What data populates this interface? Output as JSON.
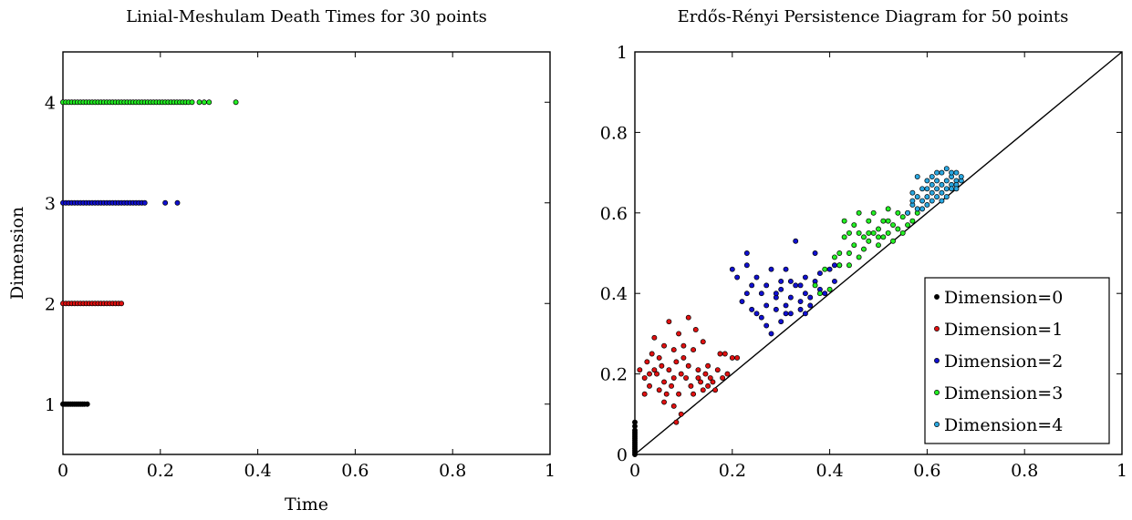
{
  "chart_data": [
    {
      "type": "scatter",
      "title": "Linial-Meshulam Death Times for 30 points",
      "xlabel": "Time",
      "ylabel": "Dimension",
      "xlim": [
        0,
        1
      ],
      "ylim": [
        0.5,
        4.5
      ],
      "xticks": [
        0,
        0.2,
        0.4,
        0.6,
        0.8,
        1
      ],
      "xtick_labels": [
        "0",
        "0.2",
        "0.4",
        "0.6",
        "0.8",
        "1"
      ],
      "yticks": [
        1,
        2,
        3,
        4
      ],
      "ytick_labels": [
        "1",
        "2",
        "3",
        "4"
      ],
      "grid": false,
      "series": [
        {
          "dimension": 1,
          "color": "#000000",
          "x": [
            0.0,
            0.004,
            0.008,
            0.012,
            0.016,
            0.02,
            0.024,
            0.028,
            0.032,
            0.036,
            0.04,
            0.044,
            0.05
          ]
        },
        {
          "dimension": 2,
          "color": "#e01010",
          "x": [
            0.0,
            0.006,
            0.012,
            0.018,
            0.024,
            0.03,
            0.036,
            0.042,
            0.048,
            0.054,
            0.06,
            0.066,
            0.072,
            0.078,
            0.084,
            0.09,
            0.096,
            0.102,
            0.108,
            0.114,
            0.12
          ]
        },
        {
          "dimension": 3,
          "color": "#1010d0",
          "x": [
            0.0,
            0.006,
            0.012,
            0.018,
            0.024,
            0.03,
            0.036,
            0.042,
            0.048,
            0.054,
            0.06,
            0.066,
            0.072,
            0.078,
            0.084,
            0.09,
            0.096,
            0.102,
            0.108,
            0.114,
            0.12,
            0.126,
            0.132,
            0.138,
            0.144,
            0.15,
            0.156,
            0.162,
            0.168,
            0.21,
            0.235
          ]
        },
        {
          "dimension": 4,
          "color": "#22ee22",
          "x": [
            0.0,
            0.006,
            0.012,
            0.018,
            0.024,
            0.03,
            0.036,
            0.042,
            0.048,
            0.054,
            0.06,
            0.066,
            0.072,
            0.078,
            0.084,
            0.09,
            0.096,
            0.102,
            0.108,
            0.114,
            0.12,
            0.126,
            0.132,
            0.138,
            0.144,
            0.15,
            0.156,
            0.162,
            0.168,
            0.174,
            0.18,
            0.186,
            0.192,
            0.198,
            0.204,
            0.21,
            0.216,
            0.222,
            0.228,
            0.234,
            0.24,
            0.246,
            0.252,
            0.258,
            0.265,
            0.28,
            0.29,
            0.3,
            0.355
          ]
        }
      ]
    },
    {
      "type": "scatter",
      "title": "Erdős-Rényi Persistence Diagram for 50 points",
      "xlabel": "",
      "ylabel": "",
      "xlim": [
        0,
        1
      ],
      "ylim": [
        0,
        1
      ],
      "xticks": [
        0,
        0.2,
        0.4,
        0.6,
        0.8,
        1
      ],
      "xtick_labels": [
        "0",
        "0.2",
        "0.4",
        "0.6",
        "0.8",
        "1"
      ],
      "yticks": [
        0,
        0.2,
        0.4,
        0.6,
        0.8,
        1
      ],
      "ytick_labels": [
        "0",
        "0.2",
        "0.4",
        "0.6",
        "0.8",
        "1"
      ],
      "diagonal": true,
      "legend_position": "bottom-right",
      "grid": false,
      "series": [
        {
          "name": "Dimension=0",
          "color": "#000000",
          "points": [
            [
              0,
              0.0
            ],
            [
              0,
              0.005
            ],
            [
              0,
              0.01
            ],
            [
              0,
              0.015
            ],
            [
              0,
              0.02
            ],
            [
              0,
              0.025
            ],
            [
              0,
              0.03
            ],
            [
              0,
              0.035
            ],
            [
              0,
              0.04
            ],
            [
              0,
              0.045
            ],
            [
              0,
              0.05
            ],
            [
              0,
              0.055
            ],
            [
              0,
              0.06
            ],
            [
              0,
              0.07
            ],
            [
              0,
              0.08
            ]
          ]
        },
        {
          "name": "Dimension=1",
          "color": "#e01010",
          "points": [
            [
              0.01,
              0.21
            ],
            [
              0.02,
              0.19
            ],
            [
              0.025,
              0.23
            ],
            [
              0.03,
              0.17
            ],
            [
              0.035,
              0.25
            ],
            [
              0.04,
              0.29
            ],
            [
              0.04,
              0.21
            ],
            [
              0.045,
              0.2
            ],
            [
              0.05,
              0.16
            ],
            [
              0.05,
              0.24
            ],
            [
              0.055,
              0.22
            ],
            [
              0.06,
              0.27
            ],
            [
              0.06,
              0.18
            ],
            [
              0.065,
              0.15
            ],
            [
              0.07,
              0.33
            ],
            [
              0.07,
              0.21
            ],
            [
              0.075,
              0.17
            ],
            [
              0.08,
              0.26
            ],
            [
              0.08,
              0.19
            ],
            [
              0.085,
              0.08
            ],
            [
              0.085,
              0.23
            ],
            [
              0.09,
              0.3
            ],
            [
              0.09,
              0.15
            ],
            [
              0.095,
              0.1
            ],
            [
              0.095,
              0.2
            ],
            [
              0.1,
              0.24
            ],
            [
              0.1,
              0.27
            ],
            [
              0.105,
              0.19
            ],
            [
              0.11,
              0.34
            ],
            [
              0.11,
              0.22
            ],
            [
              0.115,
              0.17
            ],
            [
              0.12,
              0.26
            ],
            [
              0.12,
              0.15
            ],
            [
              0.125,
              0.31
            ],
            [
              0.13,
              0.21
            ],
            [
              0.13,
              0.19
            ],
            [
              0.135,
              0.18
            ],
            [
              0.14,
              0.28
            ],
            [
              0.14,
              0.16
            ],
            [
              0.145,
              0.2
            ],
            [
              0.15,
              0.22
            ],
            [
              0.15,
              0.17
            ],
            [
              0.155,
              0.19
            ],
            [
              0.16,
              0.18
            ],
            [
              0.165,
              0.16
            ],
            [
              0.17,
              0.21
            ],
            [
              0.175,
              0.25
            ],
            [
              0.18,
              0.19
            ],
            [
              0.185,
              0.25
            ],
            [
              0.19,
              0.2
            ],
            [
              0.2,
              0.24
            ],
            [
              0.21,
              0.24
            ],
            [
              0.02,
              0.15
            ],
            [
              0.06,
              0.13
            ],
            [
              0.08,
              0.12
            ],
            [
              0.03,
              0.2
            ]
          ]
        },
        {
          "name": "Dimension=2",
          "color": "#1010d0",
          "points": [
            [
              0.2,
              0.46
            ],
            [
              0.21,
              0.44
            ],
            [
              0.22,
              0.38
            ],
            [
              0.23,
              0.4
            ],
            [
              0.23,
              0.5
            ],
            [
              0.24,
              0.36
            ],
            [
              0.24,
              0.42
            ],
            [
              0.25,
              0.44
            ],
            [
              0.25,
              0.35
            ],
            [
              0.26,
              0.34
            ],
            [
              0.26,
              0.4
            ],
            [
              0.27,
              0.42
            ],
            [
              0.27,
              0.37
            ],
            [
              0.28,
              0.3
            ],
            [
              0.28,
              0.46
            ],
            [
              0.29,
              0.36
            ],
            [
              0.29,
              0.39
            ],
            [
              0.3,
              0.41
            ],
            [
              0.3,
              0.43
            ],
            [
              0.3,
              0.33
            ],
            [
              0.31,
              0.37
            ],
            [
              0.31,
              0.46
            ],
            [
              0.32,
              0.39
            ],
            [
              0.32,
              0.35
            ],
            [
              0.33,
              0.53
            ],
            [
              0.33,
              0.42
            ],
            [
              0.34,
              0.38
            ],
            [
              0.34,
              0.36
            ],
            [
              0.35,
              0.4
            ],
            [
              0.35,
              0.44
            ],
            [
              0.36,
              0.37
            ],
            [
              0.36,
              0.39
            ],
            [
              0.37,
              0.43
            ],
            [
              0.37,
              0.5
            ],
            [
              0.38,
              0.45
            ],
            [
              0.38,
              0.41
            ],
            [
              0.39,
              0.4
            ],
            [
              0.4,
              0.46
            ],
            [
              0.41,
              0.43
            ],
            [
              0.41,
              0.47
            ],
            [
              0.42,
              0.47
            ],
            [
              0.23,
              0.47
            ],
            [
              0.27,
              0.32
            ],
            [
              0.31,
              0.35
            ],
            [
              0.35,
              0.35
            ],
            [
              0.32,
              0.43
            ],
            [
              0.29,
              0.4
            ],
            [
              0.34,
              0.42
            ]
          ]
        },
        {
          "name": "Dimension=3",
          "color": "#22ee22",
          "points": [
            [
              0.37,
              0.42
            ],
            [
              0.38,
              0.4
            ],
            [
              0.39,
              0.46
            ],
            [
              0.4,
              0.41
            ],
            [
              0.41,
              0.49
            ],
            [
              0.42,
              0.47
            ],
            [
              0.43,
              0.54
            ],
            [
              0.43,
              0.58
            ],
            [
              0.44,
              0.5
            ],
            [
              0.44,
              0.55
            ],
            [
              0.45,
              0.52
            ],
            [
              0.45,
              0.57
            ],
            [
              0.46,
              0.49
            ],
            [
              0.46,
              0.6
            ],
            [
              0.47,
              0.54
            ],
            [
              0.47,
              0.51
            ],
            [
              0.48,
              0.58
            ],
            [
              0.48,
              0.53
            ],
            [
              0.49,
              0.55
            ],
            [
              0.49,
              0.6
            ],
            [
              0.5,
              0.56
            ],
            [
              0.5,
              0.52
            ],
            [
              0.51,
              0.58
            ],
            [
              0.51,
              0.54
            ],
            [
              0.52,
              0.61
            ],
            [
              0.52,
              0.55
            ],
            [
              0.53,
              0.57
            ],
            [
              0.53,
              0.53
            ],
            [
              0.54,
              0.6
            ],
            [
              0.54,
              0.56
            ],
            [
              0.55,
              0.59
            ],
            [
              0.55,
              0.55
            ],
            [
              0.56,
              0.6
            ],
            [
              0.57,
              0.58
            ],
            [
              0.58,
              0.6
            ],
            [
              0.44,
              0.47
            ],
            [
              0.5,
              0.54
            ],
            [
              0.48,
              0.55
            ],
            [
              0.52,
              0.58
            ],
            [
              0.46,
              0.55
            ],
            [
              0.42,
              0.5
            ],
            [
              0.56,
              0.57
            ]
          ]
        },
        {
          "name": "Dimension=4",
          "color": "#2aa7e0",
          "points": [
            [
              0.56,
              0.6
            ],
            [
              0.57,
              0.62
            ],
            [
              0.57,
              0.65
            ],
            [
              0.58,
              0.61
            ],
            [
              0.58,
              0.69
            ],
            [
              0.59,
              0.63
            ],
            [
              0.59,
              0.66
            ],
            [
              0.6,
              0.62
            ],
            [
              0.6,
              0.64
            ],
            [
              0.6,
              0.68
            ],
            [
              0.61,
              0.65
            ],
            [
              0.61,
              0.63
            ],
            [
              0.61,
              0.67
            ],
            [
              0.62,
              0.66
            ],
            [
              0.62,
              0.64
            ],
            [
              0.62,
              0.68
            ],
            [
              0.63,
              0.7
            ],
            [
              0.63,
              0.65
            ],
            [
              0.63,
              0.67
            ],
            [
              0.64,
              0.66
            ],
            [
              0.64,
              0.68
            ],
            [
              0.64,
              0.71
            ],
            [
              0.65,
              0.67
            ],
            [
              0.65,
              0.69
            ],
            [
              0.65,
              0.66
            ],
            [
              0.66,
              0.68
            ],
            [
              0.66,
              0.7
            ],
            [
              0.66,
              0.67
            ],
            [
              0.67,
              0.68
            ],
            [
              0.67,
              0.69
            ],
            [
              0.58,
              0.64
            ],
            [
              0.6,
              0.66
            ],
            [
              0.62,
              0.7
            ],
            [
              0.64,
              0.64
            ],
            [
              0.59,
              0.61
            ],
            [
              0.61,
              0.69
            ],
            [
              0.63,
              0.63
            ],
            [
              0.65,
              0.7
            ],
            [
              0.57,
              0.63
            ],
            [
              0.66,
              0.66
            ]
          ]
        }
      ]
    }
  ]
}
